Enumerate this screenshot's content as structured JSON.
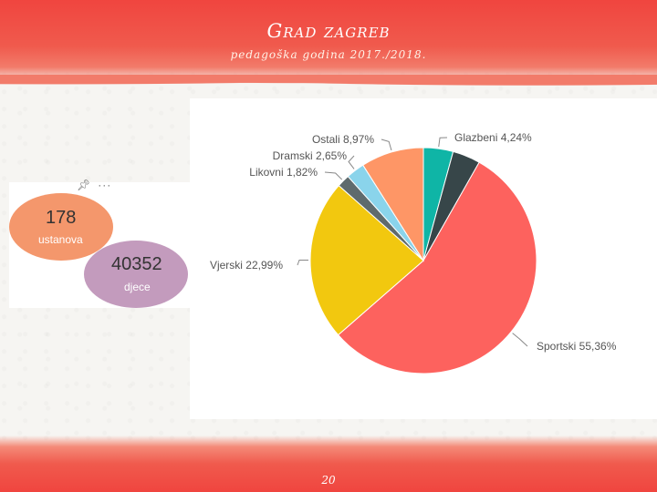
{
  "header": {
    "title": "Grad zagreb",
    "subtitle": "pedagoška godina 2017./2018."
  },
  "stats": {
    "institutions": {
      "value": "178",
      "label": "ustanova"
    },
    "children": {
      "value": "40352",
      "label": "djece"
    },
    "icons": [
      "pin-icon",
      "more-icon"
    ]
  },
  "footer": {
    "page": "20"
  },
  "colors": {
    "accent": "#f0453f",
    "bubble_institutions": "#f4976c",
    "bubble_children": "#c39bbd"
  },
  "chart_data": {
    "type": "pie",
    "slices": [
      {
        "label": "Glazbeni",
        "pct_text": "4,24%",
        "value": 4.24,
        "color": "#0fb5a6"
      },
      {
        "label": "",
        "pct_text": "",
        "value": 3.97,
        "color": "#374649"
      },
      {
        "label": "Sportski",
        "pct_text": "55,36%",
        "value": 55.36,
        "color": "#fd625e"
      },
      {
        "label": "Vjerski",
        "pct_text": "22,99%",
        "value": 22.99,
        "color": "#f2c80f"
      },
      {
        "label": "Likovni",
        "pct_text": "1,82%",
        "value": 1.82,
        "color": "#5f6b6d"
      },
      {
        "label": "Dramski",
        "pct_text": "2,65%",
        "value": 2.65,
        "color": "#8ad4eb"
      },
      {
        "label": "Ostali",
        "pct_text": "8,97%",
        "value": 8.97,
        "color": "#fe9666"
      }
    ]
  }
}
